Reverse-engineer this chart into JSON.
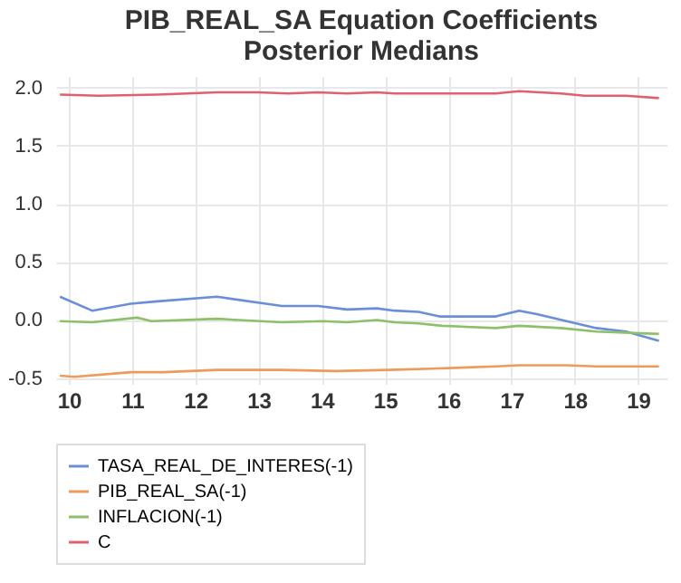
{
  "chart_data": {
    "type": "line",
    "title": "PIB_REAL_SA Equation Coefficients",
    "subtitle": "Posterior Medians",
    "xlim": [
      9.8,
      19.45
    ],
    "xticks": [
      10,
      11,
      12,
      13,
      14,
      15,
      16,
      17,
      18,
      19
    ],
    "ylim": [
      -0.55,
      2.1
    ],
    "yticks": [
      {
        "value": -0.5,
        "label": "-0.5"
      },
      {
        "value": 0,
        "label": "0.0"
      },
      {
        "value": 0.5,
        "label": "0.5"
      },
      {
        "value": 1,
        "label": "1.0"
      },
      {
        "value": 1.5,
        "label": "1.5"
      },
      {
        "value": 2,
        "label": "2.0"
      }
    ],
    "grid": true,
    "legend": "bottom",
    "line_style": "solid",
    "series": [
      {
        "name": "TASA_REAL_DE_INTERES(-1)",
        "color": "#6a8fd8",
        "x": [
          9.86,
          10.37,
          10.98,
          11.4,
          12.34,
          13.37,
          13.94,
          14.4,
          14.87,
          15.15,
          15.53,
          15.86,
          16.75,
          17.12,
          17.4,
          17.87,
          18.34,
          18.81,
          19.33
        ],
        "values": [
          0.2,
          0.08,
          0.14,
          0.16,
          0.2,
          0.12,
          0.12,
          0.09,
          0.1,
          0.08,
          0.07,
          0.03,
          0.03,
          0.08,
          0.05,
          -0.01,
          -0.07,
          -0.1,
          -0.18
        ]
      },
      {
        "name": "PIB_REAL_SA(-1)",
        "color": "#ed9a5a",
        "x": [
          9.86,
          10.09,
          10.98,
          11.5,
          12.34,
          13.37,
          14.22,
          15.06,
          15.72,
          16.75,
          17.12,
          17.87,
          18.34,
          19.33
        ],
        "values": [
          -0.48,
          -0.49,
          -0.45,
          -0.45,
          -0.43,
          -0.43,
          -0.44,
          -0.43,
          -0.42,
          -0.4,
          -0.39,
          -0.39,
          -0.4,
          -0.4
        ]
      },
      {
        "name": "INFLACION(-1)",
        "color": "#8cc06a",
        "x": [
          9.86,
          10.37,
          11.08,
          11.31,
          12.34,
          13.37,
          14.03,
          14.4,
          14.87,
          15.15,
          15.53,
          15.9,
          16.75,
          17.12,
          17.78,
          18.34,
          19.33
        ],
        "values": [
          -0.01,
          -0.02,
          0.02,
          -0.01,
          0.01,
          -0.02,
          -0.01,
          -0.02,
          0.0,
          -0.02,
          -0.03,
          -0.05,
          -0.07,
          -0.05,
          -0.07,
          -0.1,
          -0.12
        ]
      },
      {
        "name": "C",
        "color": "#e06070",
        "x": [
          9.86,
          10.47,
          11.4,
          12.34,
          13.0,
          13.47,
          13.94,
          14.4,
          14.87,
          15.15,
          16.75,
          17.12,
          17.78,
          18.15,
          18.81,
          19.33
        ],
        "values": [
          1.94,
          1.93,
          1.94,
          1.96,
          1.96,
          1.95,
          1.96,
          1.95,
          1.96,
          1.95,
          1.95,
          1.97,
          1.95,
          1.93,
          1.93,
          1.91
        ]
      }
    ]
  }
}
